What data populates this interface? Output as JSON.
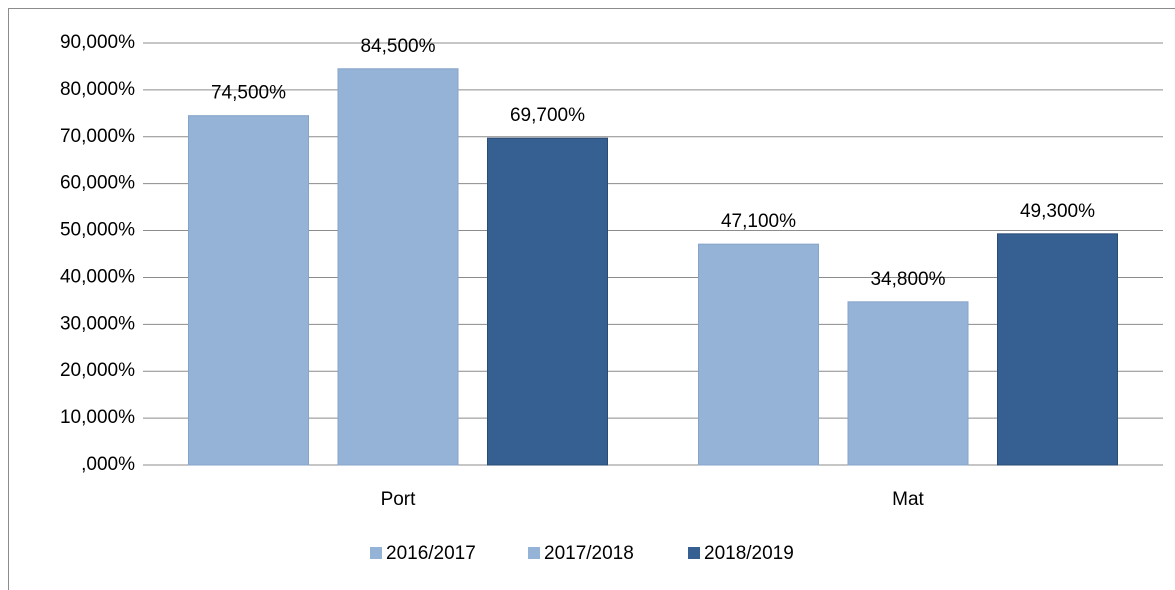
{
  "chart_data": {
    "type": "bar",
    "categories": [
      "Port",
      "Mat"
    ],
    "series": [
      {
        "name": "2016/2017",
        "color": "#95b3d7",
        "values": [
          74.5,
          47.1
        ],
        "value_labels": [
          "74,500%",
          "47,100%"
        ]
      },
      {
        "name": "2017/2018",
        "color": "#95b3d7",
        "values": [
          84.5,
          34.8
        ],
        "value_labels": [
          "84,500%",
          "34,800%"
        ]
      },
      {
        "name": "2018/2019",
        "color": "#376092",
        "values": [
          69.7,
          49.3
        ],
        "value_labels": [
          "69,700%",
          "49,300%"
        ]
      }
    ],
    "ylim": [
      0,
      90
    ],
    "yticks": [
      {
        "value": 0,
        "label": ",000%"
      },
      {
        "value": 10,
        "label": "10,000%"
      },
      {
        "value": 20,
        "label": "20,000%"
      },
      {
        "value": 30,
        "label": "30,000%"
      },
      {
        "value": 40,
        "label": "40,000%"
      },
      {
        "value": 50,
        "label": "50,000%"
      },
      {
        "value": 60,
        "label": "60,000%"
      },
      {
        "value": 70,
        "label": "70,000%"
      },
      {
        "value": 80,
        "label": "80,000%"
      },
      {
        "value": 90,
        "label": "90,000%"
      }
    ],
    "grid": true,
    "legend": "bottom"
  }
}
